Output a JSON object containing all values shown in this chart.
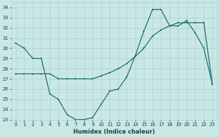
{
  "xlabel": "Humidex (Indice chaleur)",
  "xlim": [
    -0.5,
    23.5
  ],
  "ylim": [
    23,
    34.5
  ],
  "yticks": [
    23,
    24,
    25,
    26,
    27,
    28,
    29,
    30,
    31,
    32,
    33,
    34
  ],
  "xticks": [
    0,
    1,
    2,
    3,
    4,
    5,
    6,
    7,
    8,
    9,
    10,
    11,
    12,
    13,
    14,
    15,
    16,
    17,
    18,
    19,
    20,
    21,
    22,
    23
  ],
  "bg_color": "#c9e8e5",
  "line_color": "#1a6b6b",
  "grid_color": "#a8d0cc",
  "curve1_x": [
    0,
    1,
    2,
    3,
    4,
    5,
    6,
    7,
    8,
    9,
    10,
    11,
    12,
    13,
    14,
    15,
    16,
    17,
    18,
    19,
    20,
    21,
    22,
    23
  ],
  "curve1_y": [
    30.5,
    30.0,
    29.0,
    29.0,
    25.5,
    25.0,
    23.5,
    23.0,
    23.0,
    23.2,
    24.5,
    25.8,
    26.0,
    27.2,
    29.3,
    31.7,
    33.8,
    33.8,
    32.2,
    32.2,
    32.7,
    31.5,
    30.0,
    26.5
  ],
  "curve2_x": [
    0,
    1,
    2,
    3,
    4,
    5,
    6,
    7,
    8,
    9,
    10,
    11,
    12,
    13,
    14,
    15,
    16,
    17,
    18,
    19,
    20,
    21,
    22,
    23
  ],
  "curve2_y": [
    27.5,
    27.5,
    27.5,
    27.5,
    27.5,
    27.0,
    27.0,
    27.0,
    27.0,
    27.0,
    27.3,
    27.6,
    28.0,
    28.5,
    29.2,
    30.0,
    31.2,
    31.8,
    32.2,
    32.5,
    32.5,
    32.5,
    32.5,
    26.5
  ]
}
